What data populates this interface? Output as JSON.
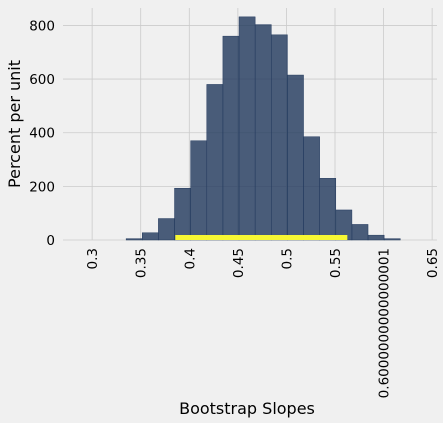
{
  "chart_data": {
    "type": "bar",
    "subtype": "histogram",
    "xlabel": "Bootstrap Slopes",
    "ylabel": "Percent per unit",
    "xlim": [
      0.27,
      0.655
    ],
    "ylim": [
      0,
      865
    ],
    "x_ticks": [
      {
        "value": 0.3,
        "label": "0.3"
      },
      {
        "value": 0.35,
        "label": "0.35"
      },
      {
        "value": 0.4,
        "label": "0.4"
      },
      {
        "value": 0.45,
        "label": "0.45"
      },
      {
        "value": 0.5,
        "label": "0.5"
      },
      {
        "value": 0.55,
        "label": "0.55"
      },
      {
        "value": 0.6,
        "label": "0.6000000000000001"
      },
      {
        "value": 0.65,
        "label": "0.65"
      }
    ],
    "y_ticks": [
      {
        "value": 0,
        "label": "0"
      },
      {
        "value": 200,
        "label": "200"
      },
      {
        "value": 400,
        "label": "400"
      },
      {
        "value": 600,
        "label": "600"
      },
      {
        "value": 800,
        "label": "800"
      }
    ],
    "bin_width": 0.0166,
    "bins": [
      {
        "start": 0.335,
        "value": 5
      },
      {
        "start": 0.3516,
        "value": 27
      },
      {
        "start": 0.3682,
        "value": 80
      },
      {
        "start": 0.3848,
        "value": 193
      },
      {
        "start": 0.4014,
        "value": 370
      },
      {
        "start": 0.418,
        "value": 580
      },
      {
        "start": 0.4346,
        "value": 760
      },
      {
        "start": 0.4512,
        "value": 832
      },
      {
        "start": 0.4678,
        "value": 803
      },
      {
        "start": 0.4844,
        "value": 765
      },
      {
        "start": 0.501,
        "value": 615
      },
      {
        "start": 0.5176,
        "value": 385
      },
      {
        "start": 0.5342,
        "value": 230
      },
      {
        "start": 0.5508,
        "value": 112
      },
      {
        "start": 0.5674,
        "value": 58
      },
      {
        "start": 0.584,
        "value": 18
      },
      {
        "start": 0.6006,
        "value": 5
      }
    ],
    "interval": {
      "start": 0.3856,
      "end": 0.5627,
      "color": "#f7f733"
    },
    "bar_color": "#233a5e",
    "grid": true
  }
}
